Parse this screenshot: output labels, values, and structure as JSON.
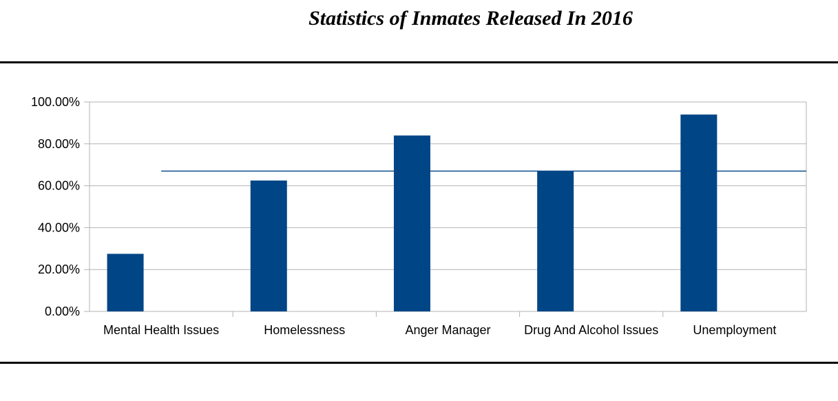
{
  "chart_data": {
    "type": "bar",
    "title": "Statistics of Inmates Released In 2016",
    "categories": [
      "Mental Health Issues",
      "Homelessness",
      "Anger Manager",
      "Drug And Alcohol Issues",
      "Unemployment"
    ],
    "values": [
      27.5,
      62.5,
      84,
      67,
      94
    ],
    "reference_line": 67,
    "ylim": [
      0,
      100
    ],
    "yticks": [
      "0.00%",
      "20.00%",
      "40.00%",
      "60.00%",
      "80.00%",
      "100.00%"
    ],
    "grid": true,
    "legend": "none",
    "bar_color": "#004586",
    "line_color": "#004586"
  }
}
